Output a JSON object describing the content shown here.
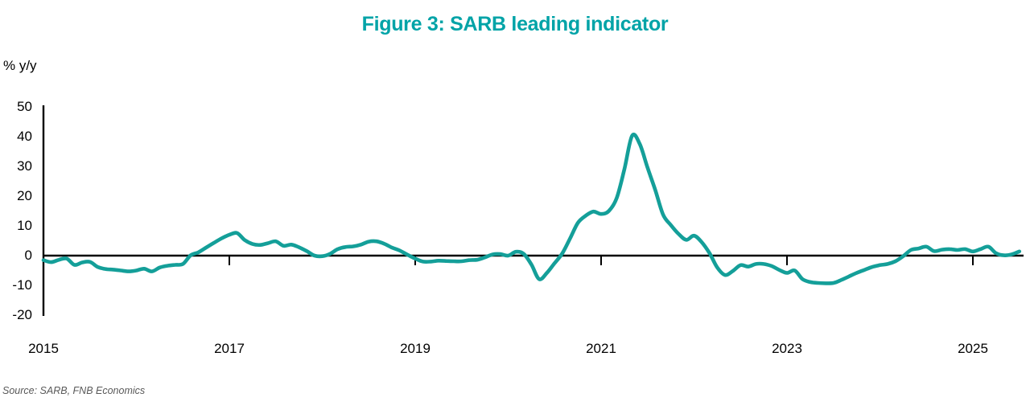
{
  "title": "Figure 3: SARB leading indicator",
  "y_axis_label": "% y/y",
  "source": "Source: SARB, FNB Economics",
  "colors": {
    "line": "#149f99",
    "title": "#00a3a7",
    "axis": "#000000",
    "source_text": "#595959"
  },
  "chart_data": {
    "type": "line",
    "title": "Figure 3: SARB leading indicator",
    "xlabel": "",
    "ylabel": "% y/y",
    "ylim": [
      -20,
      50
    ],
    "yticks": [
      50,
      40,
      30,
      20,
      10,
      0,
      -10,
      -20
    ],
    "xticks": [
      2015,
      2017,
      2019,
      2021,
      2023,
      2025
    ],
    "grid": false,
    "legend_position": "none",
    "zero_line": true,
    "series": [
      {
        "name": "SARB leading indicator (% y/y)",
        "frequency": "monthly",
        "start": "2015-01",
        "end": "2025-07",
        "values": [
          -1.5,
          -2.2,
          -1.4,
          -1.0,
          -3.1,
          -2.3,
          -2.1,
          -3.8,
          -4.5,
          -4.7,
          -5.0,
          -5.3,
          -5.0,
          -4.4,
          -5.3,
          -4.0,
          -3.4,
          -3.1,
          -2.8,
          0.1,
          1.1,
          2.7,
          4.3,
          5.8,
          7.0,
          7.6,
          5.2,
          3.9,
          3.6,
          4.2,
          4.8,
          3.3,
          3.7,
          2.8,
          1.5,
          0.0,
          -0.2,
          0.6,
          2.2,
          2.9,
          3.1,
          3.7,
          4.7,
          4.8,
          4.0,
          2.7,
          1.7,
          0.3,
          -1.0,
          -2.0,
          -2.0,
          -1.7,
          -1.8,
          -1.9,
          -1.9,
          -1.5,
          -1.4,
          -0.6,
          0.4,
          0.5,
          0.0,
          1.3,
          0.6,
          -3.0,
          -7.9,
          -5.8,
          -2.5,
          0.8,
          5.8,
          11.0,
          13.4,
          14.8,
          14.0,
          15.0,
          19.3,
          29.0,
          40.3,
          37.5,
          29.5,
          22.0,
          13.8,
          10.3,
          7.3,
          5.3,
          6.7,
          4.5,
          0.8,
          -4.0,
          -6.5,
          -5.2,
          -3.2,
          -3.7,
          -2.8,
          -2.8,
          -3.5,
          -4.8,
          -5.8,
          -5.0,
          -7.9,
          -8.9,
          -9.2,
          -9.3,
          -9.2,
          -8.2,
          -7.0,
          -5.8,
          -4.8,
          -3.8,
          -3.2,
          -2.8,
          -1.9,
          -0.2,
          1.9,
          2.4,
          3.0,
          1.5,
          2.0,
          2.2,
          1.9,
          2.2,
          1.4,
          2.2,
          3.0,
          0.8,
          0.1,
          0.4,
          1.4
        ]
      }
    ]
  }
}
